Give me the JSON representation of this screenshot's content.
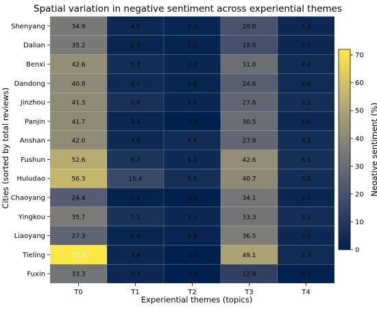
{
  "chart_data": {
    "type": "heatmap",
    "title": "Spatial variation in negative sentiment across experiential themes",
    "xlabel": "Experiential themes (topics)",
    "ylabel": "Cities (sorted by total reviews)",
    "colorbar_label": "Negative sentiment (%)",
    "colorbar_ticks": [
      0,
      10,
      20,
      30,
      40,
      50,
      60,
      70
    ],
    "value_range": [
      0,
      72
    ],
    "colormap": [
      "#00204d",
      "#414d6b",
      "#7c7b78",
      "#bcaf6f",
      "#ffe945"
    ],
    "x": [
      "T0",
      "T1",
      "T2",
      "T3",
      "T4"
    ],
    "y": [
      "Shenyang",
      "Dalian",
      "Benxi",
      "Dandong",
      "Jinzhou",
      "Panjin",
      "Anshan",
      "Fushun",
      "Huludao",
      "Chaoyang",
      "Yingkou",
      "Liaoyang",
      "Tieling",
      "Fuxin"
    ],
    "values": [
      [
        34.9,
        4.0,
        2.3,
        20.0,
        3.3
      ],
      [
        35.2,
        2.2,
        1.6,
        19.0,
        3.2
      ],
      [
        42.6,
        5.3,
        2.6,
        31.0,
        4.4
      ],
      [
        40.8,
        4.1,
        2.0,
        24.6,
        4.4
      ],
      [
        41.3,
        6.8,
        2.6,
        27.8,
        5.2
      ],
      [
        41.7,
        3.1,
        0.0,
        30.5,
        4.0
      ],
      [
        42.0,
        3.8,
        4.8,
        27.9,
        5.1
      ],
      [
        52.6,
        8.2,
        4.1,
        42.6,
        6.1
      ],
      [
        56.3,
        16.4,
        5.9,
        40.7,
        5.1
      ],
      [
        24.4,
        1.2,
        0.0,
        34.1,
        2.7
      ],
      [
        35.7,
        7.1,
        3.5,
        33.3,
        5.2
      ],
      [
        27.3,
        2.4,
        1.9,
        36.5,
        3.6
      ],
      [
        71.4,
        3.4,
        0.0,
        49.1,
        4.3
      ],
      [
        33.3,
        3.7,
        0.0,
        12.9,
        0.9
      ]
    ],
    "grid": false,
    "legend": "colorbar-right"
  }
}
